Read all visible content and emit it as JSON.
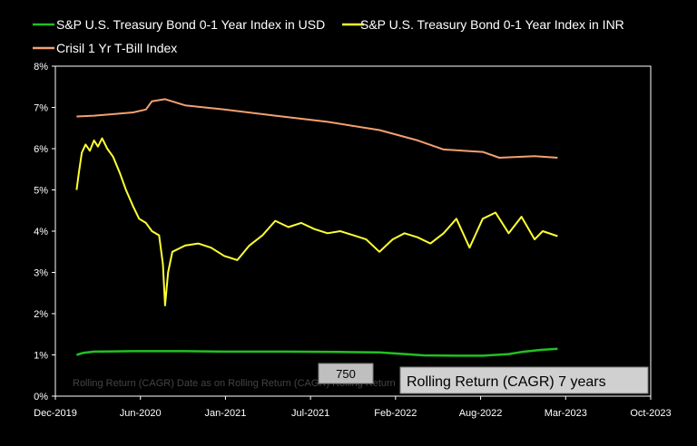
{
  "chart_data": {
    "type": "line",
    "title": "",
    "xlabel": "",
    "ylabel": "",
    "x_ticks": [
      "Dec-2019",
      "Jun-2020",
      "Jan-2021",
      "Jul-2021",
      "Feb-2022",
      "Aug-2022",
      "Mar-2023",
      "Oct-2023"
    ],
    "y_ticks": [
      "0%",
      "1%",
      "2%",
      "3%",
      "4%",
      "5%",
      "6%",
      "7%",
      "8%"
    ],
    "xlim": [
      "2019-12-01",
      "2023-10-01"
    ],
    "ylim": [
      0,
      8
    ],
    "grid": false,
    "legend_position": "top",
    "series": [
      {
        "name": "S&P U.S. Treasury Bond 0-1 Year Index in USD",
        "color": "#22c022",
        "points": [
          [
            "2020-01-20",
            1.0
          ],
          [
            "2020-02-05",
            1.05
          ],
          [
            "2020-03-01",
            1.08
          ],
          [
            "2020-06-01",
            1.09
          ],
          [
            "2020-10-01",
            1.09
          ],
          [
            "2021-01-01",
            1.08
          ],
          [
            "2021-06-01",
            1.08
          ],
          [
            "2021-10-01",
            1.07
          ],
          [
            "2022-01-01",
            1.06
          ],
          [
            "2022-02-15",
            1.03
          ],
          [
            "2022-04-15",
            0.99
          ],
          [
            "2022-07-01",
            0.98
          ],
          [
            "2022-09-01",
            0.98
          ],
          [
            "2022-11-01",
            1.02
          ],
          [
            "2022-12-01",
            1.07
          ],
          [
            "2023-01-15",
            1.12
          ],
          [
            "2023-02-24",
            1.15
          ]
        ]
      },
      {
        "name": "S&P U.S. Treasury Bond 0-1 Year Index in INR",
        "color": "#ffff33",
        "points": [
          [
            "2020-01-20",
            5.0
          ],
          [
            "2020-01-25",
            5.4
          ],
          [
            "2020-02-01",
            5.9
          ],
          [
            "2020-02-10",
            6.1
          ],
          [
            "2020-02-20",
            5.95
          ],
          [
            "2020-03-01",
            6.2
          ],
          [
            "2020-03-10",
            6.05
          ],
          [
            "2020-03-20",
            6.25
          ],
          [
            "2020-04-01",
            6.0
          ],
          [
            "2020-04-15",
            5.8
          ],
          [
            "2020-05-01",
            5.4
          ],
          [
            "2020-05-15",
            5.0
          ],
          [
            "2020-06-01",
            4.6
          ],
          [
            "2020-06-15",
            4.3
          ],
          [
            "2020-07-01",
            4.2
          ],
          [
            "2020-07-15",
            4.0
          ],
          [
            "2020-08-01",
            3.9
          ],
          [
            "2020-08-10",
            3.2
          ],
          [
            "2020-08-15",
            2.2
          ],
          [
            "2020-08-22",
            3.0
          ],
          [
            "2020-09-01",
            3.5
          ],
          [
            "2020-10-01",
            3.65
          ],
          [
            "2020-11-01",
            3.7
          ],
          [
            "2020-12-01",
            3.6
          ],
          [
            "2021-01-01",
            3.4
          ],
          [
            "2021-02-01",
            3.3
          ],
          [
            "2021-03-01",
            3.65
          ],
          [
            "2021-04-01",
            3.9
          ],
          [
            "2021-05-01",
            4.25
          ],
          [
            "2021-06-01",
            4.1
          ],
          [
            "2021-07-01",
            4.2
          ],
          [
            "2021-08-01",
            4.05
          ],
          [
            "2021-09-01",
            3.95
          ],
          [
            "2021-10-01",
            4.0
          ],
          [
            "2021-11-01",
            3.9
          ],
          [
            "2021-12-01",
            3.8
          ],
          [
            "2022-01-01",
            3.5
          ],
          [
            "2022-02-01",
            3.8
          ],
          [
            "2022-03-01",
            3.95
          ],
          [
            "2022-04-01",
            3.85
          ],
          [
            "2022-05-01",
            3.7
          ],
          [
            "2022-06-01",
            3.95
          ],
          [
            "2022-07-01",
            4.3
          ],
          [
            "2022-08-01",
            3.6
          ],
          [
            "2022-09-01",
            4.3
          ],
          [
            "2022-10-01",
            4.45
          ],
          [
            "2022-11-01",
            3.95
          ],
          [
            "2022-12-01",
            4.35
          ],
          [
            "2023-01-01",
            3.8
          ],
          [
            "2023-01-20",
            4.0
          ],
          [
            "2023-02-24",
            3.88
          ]
        ]
      },
      {
        "name": "Crisil 1 Yr T-Bill Index",
        "color": "#f4a070",
        "points": [
          [
            "2020-01-20",
            6.78
          ],
          [
            "2020-03-01",
            6.8
          ],
          [
            "2020-05-01",
            6.85
          ],
          [
            "2020-06-01",
            6.88
          ],
          [
            "2020-07-01",
            6.95
          ],
          [
            "2020-07-15",
            7.15
          ],
          [
            "2020-08-15",
            7.2
          ],
          [
            "2020-10-01",
            7.05
          ],
          [
            "2021-01-01",
            6.95
          ],
          [
            "2021-05-01",
            6.8
          ],
          [
            "2021-09-01",
            6.65
          ],
          [
            "2022-01-01",
            6.45
          ],
          [
            "2022-04-01",
            6.2
          ],
          [
            "2022-06-01",
            5.98
          ],
          [
            "2022-09-01",
            5.92
          ],
          [
            "2022-10-10",
            5.78
          ],
          [
            "2023-01-01",
            5.82
          ],
          [
            "2023-02-24",
            5.78
          ]
        ]
      }
    ],
    "annotations": {
      "counter": "750",
      "caption": "Rolling Return (CAGR) 7 years",
      "faint_text": "Rolling Return (CAGR) Date as on Rolling Return (CAGR) Rolling Return"
    }
  }
}
